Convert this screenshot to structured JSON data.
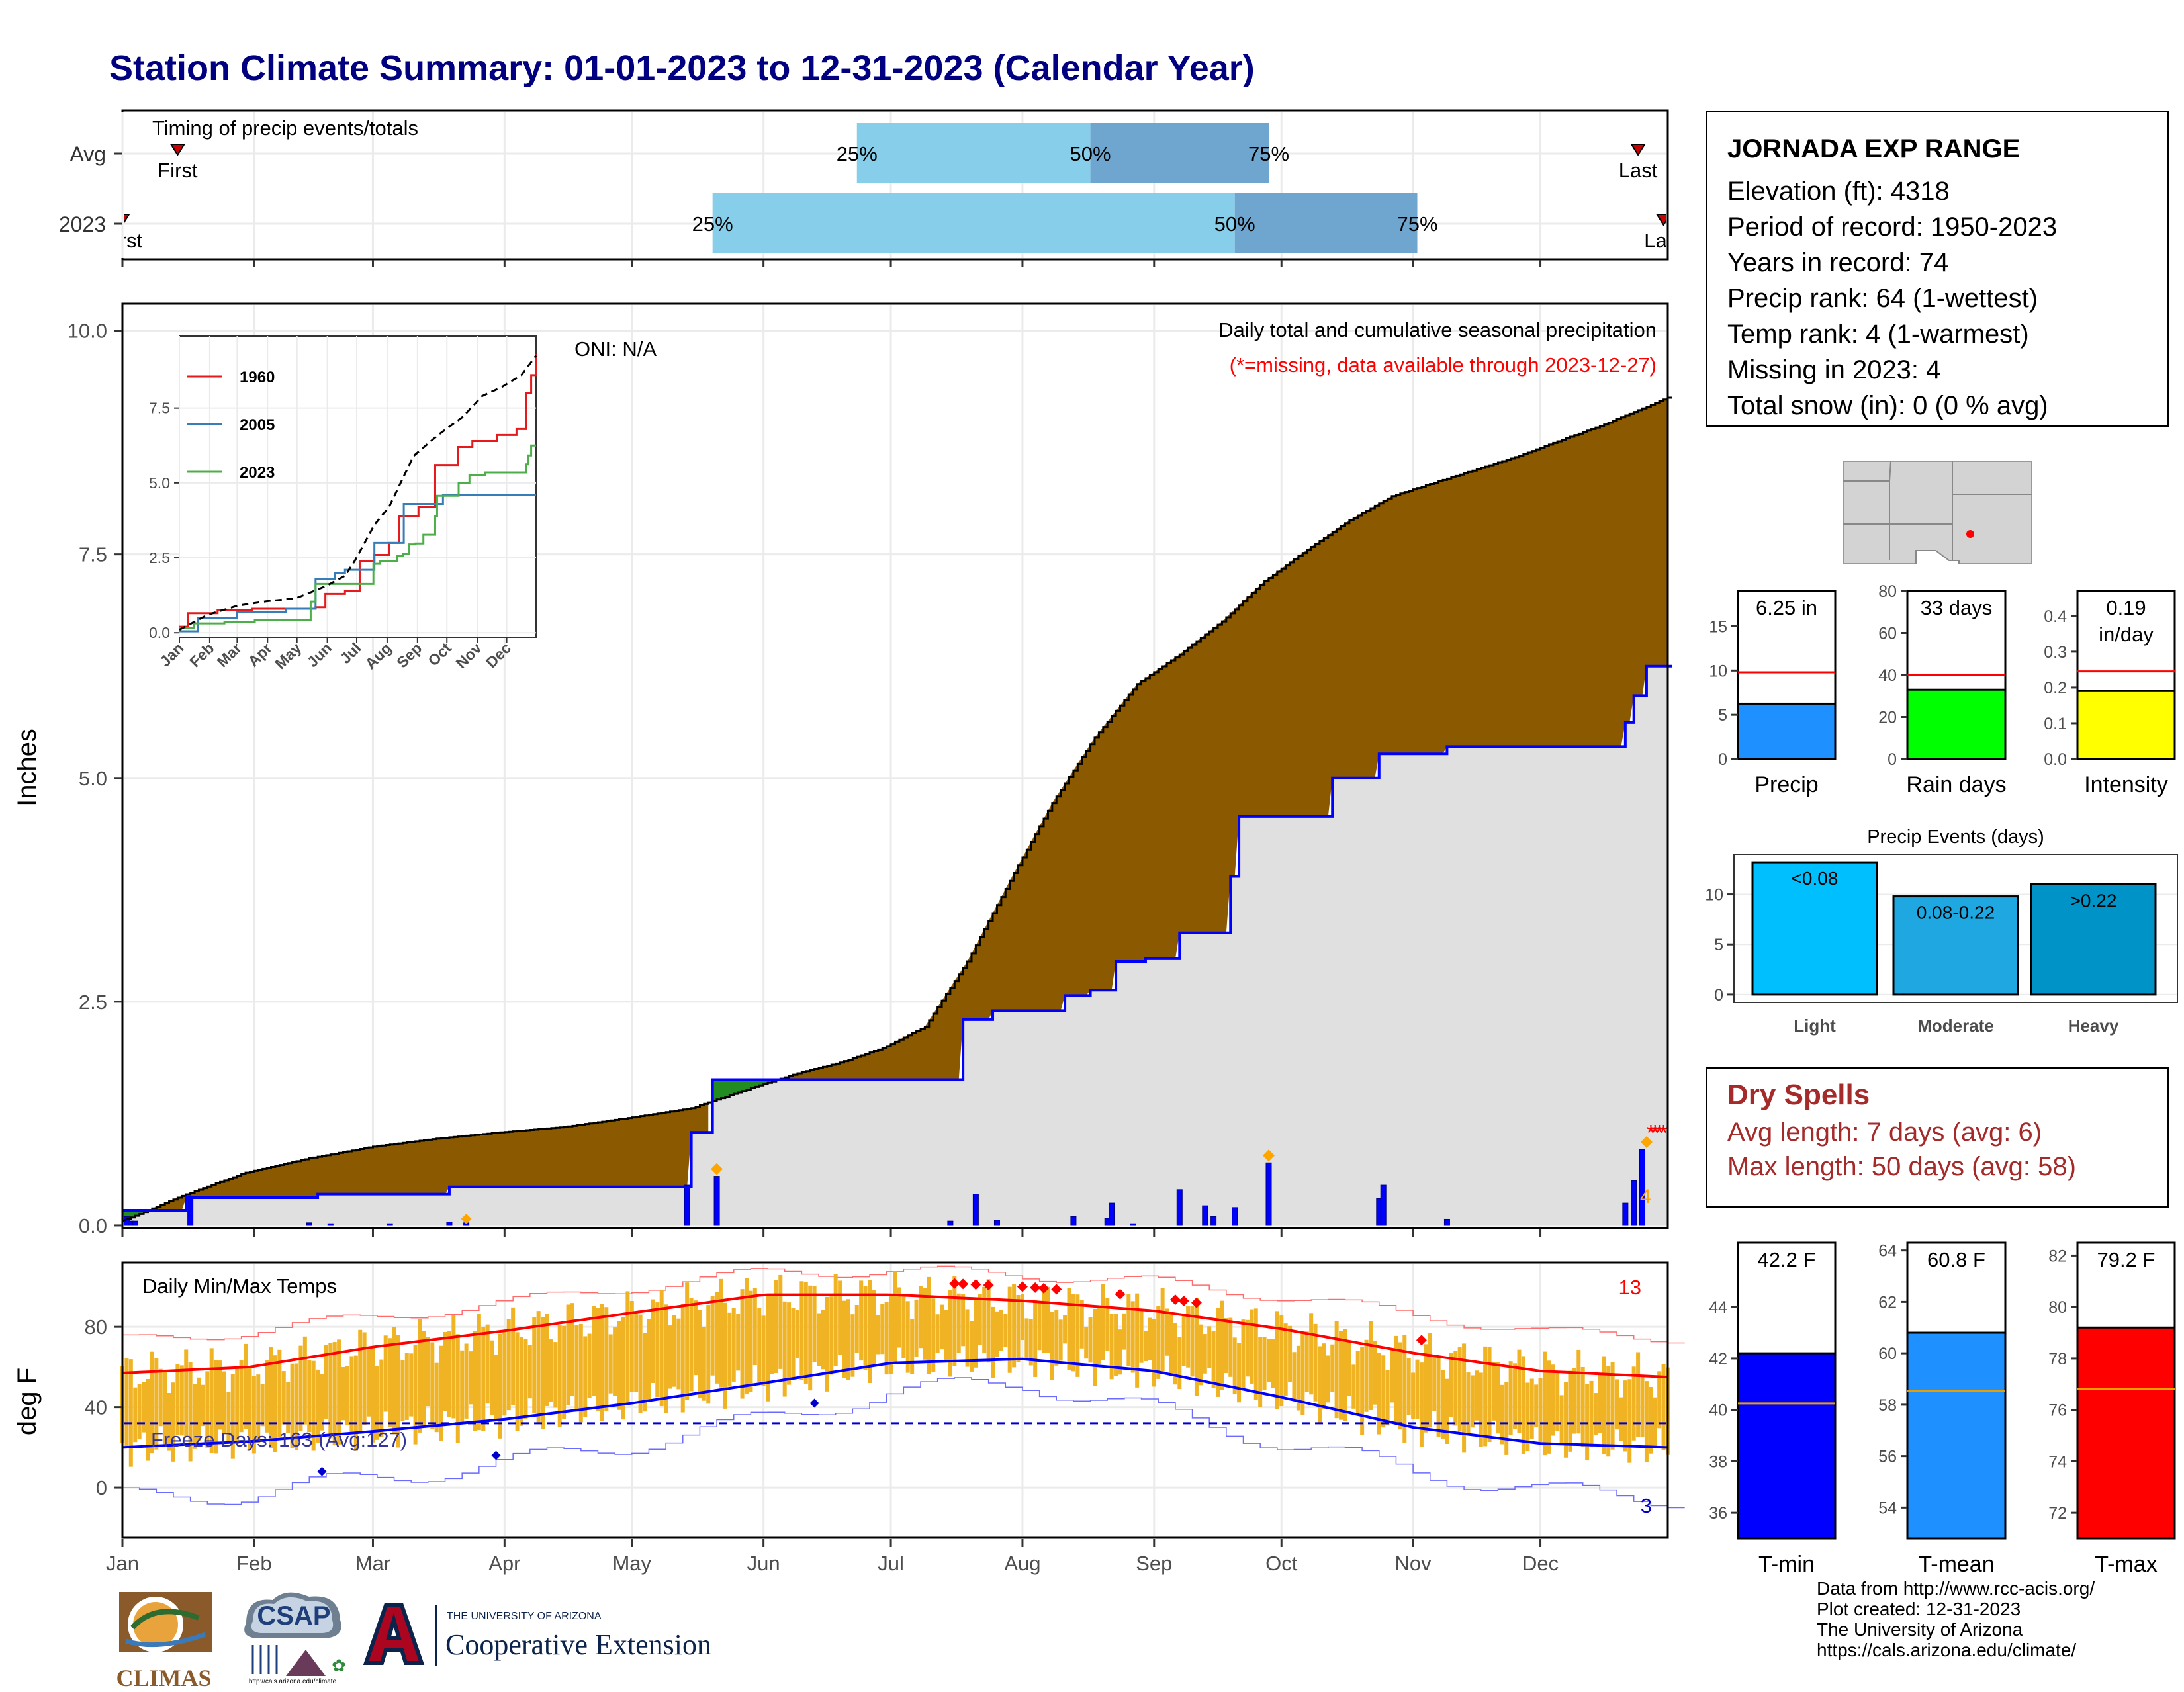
{
  "title": "Station Climate Summary: 01-01-2023 to 12-31-2023 (Calendar Year)",
  "timing_panel": {
    "label": "Timing of precip events/totals",
    "rows": [
      {
        "name": "Avg",
        "first_label": "First",
        "last_label": "Last",
        "first_date": "2023-01-14",
        "last_date": "2023-12-24",
        "p25": "2023-06-23",
        "p50": "2023-08-17",
        "p75": "2023-09-28",
        "p25_label": "25%",
        "p50_label": "50%",
        "p75_label": "75%"
      },
      {
        "name": "2023",
        "first_label": "First",
        "last_label": "Last",
        "first_date": "2023-01-01",
        "last_date": "2023-12-30",
        "p25": "2023-05-20",
        "p50": "2023-09-20",
        "p75": "2023-11-02",
        "p25_label": "25%",
        "p50_label": "50%",
        "p75_label": "75%"
      }
    ]
  },
  "precip_panel": {
    "ylabel": "Inches",
    "oni": "ONI: N/A",
    "note1": "Daily total and cumulative seasonal precipitation",
    "note2": "(*=missing, data available through 2023-12-27)",
    "missing_count_label": "4",
    "yticks": [
      "0.0",
      "2.5",
      "5.0",
      "7.5",
      "10.0"
    ]
  },
  "temp_panel": {
    "ylabel": "deg F",
    "label": "Daily Min/Max Temps",
    "freeze_label": "Freeze Days: 163 (Avg:127)",
    "hot_count_label": "13",
    "cold_count_label": "3",
    "yticks": [
      "0",
      "40",
      "80"
    ]
  },
  "months": [
    "Jan",
    "Feb",
    "Mar",
    "Apr",
    "May",
    "Jun",
    "Jul",
    "Aug",
    "Sep",
    "Oct",
    "Nov",
    "Dec"
  ],
  "inset": {
    "xticks": [
      "Jan",
      "Feb",
      "Mar",
      "Apr",
      "May",
      "Jun",
      "Jul",
      "Aug",
      "Sep",
      "Oct",
      "Nov",
      "Dec"
    ],
    "yticks": [
      "0.0",
      "2.5",
      "5.0",
      "7.5"
    ],
    "legend": [
      {
        "name": "1960",
        "color": "#e41a1c"
      },
      {
        "name": "2005",
        "color": "#377eb8"
      },
      {
        "name": "2023",
        "color": "#4daf4a"
      }
    ]
  },
  "station": {
    "name": "JORNADA EXP RANGE",
    "lines": [
      "Elevation (ft): 4318",
      "Period of record: 1950-2023",
      "Years in record: 74",
      "Precip rank: 64 (1-wettest)",
      "Temp rank: 4 (1-warmest)",
      "Missing in 2023: 4",
      "Total snow (in): 0 (0 % avg)"
    ]
  },
  "mini_bars": {
    "precip": {
      "label": "Precip",
      "value_label": "6.25 in",
      "yticks": [
        "0",
        "5",
        "10",
        "15"
      ]
    },
    "rain_days": {
      "label": "Rain days",
      "value_label": "33 days",
      "yticks": [
        "0",
        "20",
        "40",
        "60",
        "80"
      ]
    },
    "intensity": {
      "label": "Intensity",
      "value_label_1": "0.19",
      "value_label_2": "in/day",
      "yticks": [
        "0.0",
        "0.1",
        "0.2",
        "0.3",
        "0.4"
      ]
    }
  },
  "precip_events": {
    "title": "Precip Events (days)",
    "yticks": [
      "0",
      "5",
      "10"
    ],
    "bars": [
      {
        "category": "Light",
        "bar_label": "<0.08"
      },
      {
        "category": "Moderate",
        "bar_label": "0.08-0.22"
      },
      {
        "category": "Heavy",
        "bar_label": ">0.22"
      }
    ]
  },
  "dry_spells": {
    "title": "Dry Spells",
    "avg_line": "Avg length: 7 days (avg: 6)",
    "max_line": "Max length: 50 days (avg: 58)"
  },
  "temp_bars": {
    "tmin": {
      "label": "T-min",
      "value_label": "42.2 F",
      "yticks": [
        "36",
        "38",
        "40",
        "42",
        "44"
      ]
    },
    "tmean": {
      "label": "T-mean",
      "value_label": "60.8 F",
      "yticks": [
        "54",
        "56",
        "58",
        "60",
        "62",
        "64"
      ]
    },
    "tmax": {
      "label": "T-max",
      "value_label": "79.2 F",
      "yticks": [
        "72",
        "74",
        "76",
        "78",
        "80",
        "82"
      ]
    }
  },
  "credits": [
    "Data from http://www.rcc-acis.org/",
    "Plot created: 12-31-2023",
    "The University of Arizona",
    "https://cals.arizona.edu/climate/"
  ],
  "logos": {
    "climas": "CLIMAS",
    "csap": "CSAP",
    "csap_url": "http://cals.arizona.edu/climate",
    "ua_small": "THE UNIVERSITY OF ARIZONA",
    "ua_big": "Cooperative Extension"
  },
  "chart_data": [
    {
      "type": "area",
      "title": "Daily total and cumulative seasonal precipitation",
      "ylabel": "Inches",
      "ylim": [
        0,
        10
      ],
      "x_unit": "day of year",
      "avg_cumulative": {
        "x": [
          1,
          15,
          30,
          45,
          60,
          75,
          90,
          105,
          120,
          135,
          150,
          160,
          170,
          180,
          190,
          200,
          210,
          220,
          230,
          240,
          250,
          260,
          270,
          280,
          290,
          300,
          310,
          320,
          330,
          340,
          350,
          365
        ],
        "y": [
          0.05,
          0.33,
          0.59,
          0.75,
          0.88,
          0.97,
          1.04,
          1.1,
          1.2,
          1.31,
          1.55,
          1.7,
          1.82,
          1.98,
          2.22,
          2.95,
          3.85,
          4.72,
          5.45,
          6.05,
          6.38,
          6.75,
          7.2,
          7.55,
          7.88,
          8.15,
          8.3,
          8.45,
          8.6,
          8.78,
          8.95,
          9.25
        ]
      },
      "series": [
        {
          "name": "2023",
          "x": [
            1,
            16,
            47,
            78,
            135,
            140,
            199,
            206,
            223,
            229,
            235,
            242,
            249,
            250,
            262,
            264,
            286,
            297,
            313,
            355,
            357,
            360,
            365
          ],
          "y": [
            0.17,
            0.31,
            0.35,
            0.43,
            1.04,
            1.63,
            2.3,
            2.4,
            2.57,
            2.63,
            2.95,
            2.98,
            2.98,
            3.27,
            3.9,
            4.57,
            5.0,
            5.27,
            5.35,
            5.62,
            5.92,
            6.25,
            6.25
          ]
        }
      ],
      "daily": {
        "x": [
          2,
          3,
          4,
          17,
          45,
          50,
          64,
          78,
          82,
          134,
          141,
          196,
          202,
          207,
          225,
          233,
          234,
          239,
          250,
          256,
          258,
          263,
          271,
          297,
          298,
          313,
          355,
          357,
          359
        ],
        "y": [
          0.1,
          0.05,
          0.05,
          0.3,
          0.03,
          0.02,
          0.02,
          0.04,
          0.03,
          0.45,
          0.55,
          0.05,
          0.35,
          0.06,
          0.1,
          0.08,
          0.25,
          0.02,
          0.4,
          0.22,
          0.1,
          0.2,
          0.7,
          0.3,
          0.45,
          0.07,
          0.25,
          0.5,
          0.85
        ]
      },
      "missing_days": [
        361,
        362,
        363,
        364
      ]
    },
    {
      "type": "line",
      "title": "Daily Min/Max Temps",
      "ylabel": "deg F",
      "ylim": [
        -25,
        112
      ],
      "freeze_line": 32,
      "normal_max": {
        "x": [
          1,
          31,
          60,
          91,
          121,
          152,
          182,
          213,
          244,
          274,
          305,
          335,
          365
        ],
        "y": [
          57,
          60,
          70,
          78,
          87,
          96,
          96,
          93,
          88,
          79,
          67,
          58,
          55
        ]
      },
      "normal_min": {
        "x": [
          1,
          31,
          60,
          91,
          121,
          152,
          182,
          213,
          244,
          274,
          305,
          335,
          365
        ],
        "y": [
          20,
          23,
          28,
          34,
          42,
          52,
          62,
          64,
          58,
          45,
          30,
          22,
          20
        ]
      },
      "record_max": {
        "x": [
          1,
          31,
          60,
          91,
          121,
          152,
          182,
          213,
          244,
          274,
          305,
          335,
          365
        ],
        "y": [
          73,
          78,
          85,
          92,
          100,
          107,
          108,
          106,
          102,
          95,
          86,
          77,
          75
        ]
      },
      "record_min": {
        "x": [
          1,
          31,
          60,
          91,
          121,
          152,
          182,
          213,
          244,
          274,
          305,
          335,
          365
        ],
        "y": [
          -5,
          -3,
          5,
          12,
          22,
          34,
          48,
          52,
          38,
          22,
          8,
          -2,
          -5
        ]
      }
    },
    {
      "type": "line",
      "title": "",
      "xticks": [
        "Jan",
        "Feb",
        "Mar",
        "Apr",
        "May",
        "Jun",
        "Jul",
        "Aug",
        "Sep",
        "Oct",
        "Nov",
        "Dec"
      ],
      "ylim": [
        0,
        10
      ],
      "series": [
        {
          "name": "1960",
          "x": [
            1,
            10,
            40,
            75,
            140,
            150,
            170,
            185,
            200,
            215,
            225,
            245,
            262,
            285,
            300,
            325,
            345,
            355,
            360,
            365
          ],
          "y": [
            0.2,
            0.65,
            0.75,
            0.8,
            0.85,
            1.3,
            1.4,
            2.4,
            2.6,
            3.0,
            3.9,
            4.2,
            5.6,
            6.2,
            6.4,
            6.6,
            6.8,
            8.0,
            8.6,
            9.3
          ]
        },
        {
          "name": "2005",
          "x": [
            1,
            20,
            60,
            110,
            140,
            160,
            170,
            200,
            230,
            270,
            300,
            330,
            365
          ],
          "y": [
            0.05,
            0.5,
            0.7,
            0.8,
            1.8,
            2.0,
            2.1,
            3.0,
            4.3,
            4.6,
            4.6,
            4.6,
            4.6
          ]
        },
        {
          "name": "2023",
          "x": [
            1,
            16,
            47,
            78,
            135,
            140,
            199,
            206,
            223,
            229,
            235,
            242,
            250,
            262,
            264,
            286,
            297,
            313,
            355,
            357,
            360,
            365
          ],
          "y": [
            0.17,
            0.31,
            0.35,
            0.43,
            1.04,
            1.63,
            2.3,
            2.4,
            2.57,
            2.63,
            2.95,
            2.98,
            3.27,
            3.9,
            4.57,
            5.0,
            5.27,
            5.35,
            5.62,
            5.92,
            6.25,
            6.25
          ]
        },
        {
          "name": "",
          "x": [
            1,
            30,
            60,
            90,
            120,
            150,
            170,
            180,
            200,
            215,
            240,
            265,
            290,
            310,
            330,
            350,
            365
          ],
          "y": [
            0.1,
            0.6,
            0.9,
            1.05,
            1.15,
            1.55,
            1.9,
            2.4,
            3.6,
            4.2,
            5.9,
            6.6,
            7.2,
            7.9,
            8.2,
            8.6,
            9.25
          ]
        }
      ]
    },
    {
      "type": "bar",
      "title": "",
      "categories": [
        "Precip"
      ],
      "values": [
        6.25
      ],
      "reference_line": 9.8,
      "ylim": [
        0,
        19
      ],
      "unit": "in"
    },
    {
      "type": "bar",
      "title": "",
      "categories": [
        "Rain days"
      ],
      "values": [
        33
      ],
      "reference_line": 40,
      "ylim": [
        0,
        80
      ],
      "unit": "days"
    },
    {
      "type": "bar",
      "title": "",
      "categories": [
        "Intensity"
      ],
      "values": [
        0.19
      ],
      "reference_line": 0.245,
      "ylim": [
        0,
        0.47
      ],
      "unit": "in/day"
    },
    {
      "type": "bar",
      "title": "Precip Events (days)",
      "categories": [
        "Light",
        "Moderate",
        "Heavy"
      ],
      "values": [
        13.2,
        9.8,
        11.0
      ],
      "ylim": [
        -0.8,
        14
      ]
    },
    {
      "type": "bar",
      "title": "",
      "categories": [
        "T-min"
      ],
      "values": [
        42.2
      ],
      "reference_line": 40.25,
      "ylim": [
        35,
        46.5
      ]
    },
    {
      "type": "bar",
      "title": "",
      "categories": [
        "T-mean"
      ],
      "values": [
        60.8
      ],
      "reference_line": 58.55,
      "ylim": [
        52.8,
        64.3
      ]
    },
    {
      "type": "bar",
      "title": "",
      "categories": [
        "T-max"
      ],
      "values": [
        79.2
      ],
      "reference_line": 76.8,
      "ylim": [
        71,
        82.5
      ]
    }
  ]
}
